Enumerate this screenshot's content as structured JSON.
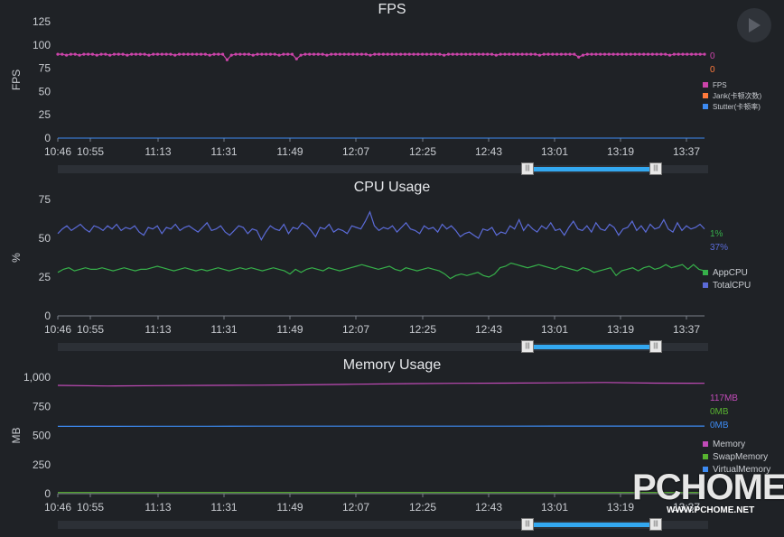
{
  "play_icon": "play-icon",
  "watermark": {
    "brand": "PCHOME",
    "url": "WWW.PCHOME.NET"
  },
  "x_ticks": [
    "10:46",
    "10:55",
    "11:13",
    "11:31",
    "11:49",
    "12:07",
    "12:25",
    "12:43",
    "13:01",
    "13:19",
    "13:37"
  ],
  "chart_data": [
    {
      "type": "line",
      "title": "FPS",
      "ylabel": "FPS",
      "ylim": [
        0,
        125
      ],
      "yticks": [
        0,
        25,
        50,
        75,
        100,
        125
      ],
      "grid": false,
      "legend_position": "right",
      "current_values": [
        "0",
        "0"
      ],
      "series": [
        {
          "name": "FPS",
          "color": "#cc44aa",
          "values": [
            90,
            90,
            89,
            90,
            90,
            89,
            90,
            90,
            90,
            89,
            90,
            90,
            89,
            90,
            90,
            90,
            89,
            90,
            90,
            90,
            90,
            89,
            90,
            90,
            90,
            90,
            90,
            89,
            90,
            90,
            90,
            90,
            90,
            90,
            90,
            89,
            90,
            90,
            90,
            84,
            89,
            90,
            90,
            90,
            90,
            89,
            90,
            90,
            90,
            90,
            90,
            89,
            90,
            90,
            90,
            85,
            89,
            90,
            90,
            90,
            90,
            90,
            89,
            90,
            90,
            90,
            90,
            90,
            90,
            90,
            90,
            90,
            89,
            90,
            90,
            90,
            90,
            90,
            90,
            90,
            90,
            90,
            90,
            90,
            90,
            90,
            90,
            90,
            90,
            89,
            90,
            90,
            90,
            90,
            90,
            90,
            90,
            90,
            90,
            90,
            90,
            89,
            90,
            90,
            90,
            90,
            90,
            90,
            90,
            90,
            90,
            89,
            90,
            90,
            90,
            90,
            90,
            90,
            90,
            90,
            87,
            89,
            90,
            90,
            90,
            90,
            90,
            90,
            90,
            90,
            90,
            90,
            90,
            90,
            90,
            90,
            90,
            90,
            90,
            90,
            90,
            89,
            90,
            90,
            90,
            90,
            90,
            90,
            90,
            90
          ]
        },
        {
          "name": "Jank(卡顿次数)",
          "color": "#ff7a3c",
          "values": [
            0
          ]
        },
        {
          "name": "Stutter(卡顿率)",
          "color": "#3d8bf2",
          "values": [
            0
          ]
        }
      ]
    },
    {
      "type": "line",
      "title": "CPU Usage",
      "ylabel": "%",
      "ylim": [
        0,
        75
      ],
      "yticks": [
        0,
        25,
        50,
        75
      ],
      "grid": false,
      "legend_position": "right",
      "current_values": [
        "1%",
        "37%"
      ],
      "series": [
        {
          "name": "AppCPU",
          "color": "#36b04a",
          "values": [
            28,
            30,
            31,
            29,
            30,
            31,
            30,
            30,
            31,
            30,
            29,
            30,
            31,
            30,
            29,
            30,
            30,
            31,
            32,
            31,
            30,
            29,
            30,
            31,
            30,
            29,
            30,
            29,
            30,
            31,
            30,
            29,
            30,
            31,
            30,
            31,
            30,
            29,
            30,
            31,
            30,
            29,
            27,
            30,
            28,
            30,
            31,
            30,
            29,
            31,
            30,
            29,
            30,
            31,
            32,
            33,
            32,
            31,
            30,
            31,
            32,
            30,
            29,
            31,
            30,
            29,
            30,
            31,
            30,
            29,
            27,
            24,
            26,
            27,
            26,
            27,
            28,
            26,
            25,
            27,
            31,
            32,
            34,
            33,
            32,
            31,
            32,
            33,
            32,
            31,
            30,
            32,
            31,
            30,
            29,
            31,
            30,
            28,
            29,
            30,
            31,
            26,
            29,
            30,
            31,
            29,
            31,
            32,
            30,
            31,
            33,
            31,
            32,
            33,
            30,
            33,
            30,
            29
          ]
        },
        {
          "name": "TotalCPU",
          "color": "#5b6bd8",
          "values": [
            53,
            56,
            58,
            55,
            57,
            59,
            56,
            54,
            58,
            57,
            55,
            58,
            56,
            59,
            55,
            57,
            56,
            58,
            54,
            52,
            57,
            56,
            58,
            53,
            57,
            56,
            59,
            55,
            57,
            58,
            56,
            54,
            57,
            60,
            55,
            56,
            58,
            54,
            52,
            55,
            58,
            57,
            53,
            56,
            55,
            49,
            54,
            58,
            56,
            55,
            59,
            53,
            57,
            56,
            60,
            58,
            55,
            51,
            57,
            56,
            59,
            54,
            56,
            55,
            53,
            58,
            57,
            56,
            61,
            67,
            58,
            55,
            57,
            56,
            58,
            54,
            57,
            60,
            56,
            55,
            53,
            58,
            56,
            57,
            54,
            59,
            56,
            58,
            55,
            51,
            53,
            54,
            52,
            50,
            56,
            55,
            57,
            52,
            54,
            53,
            58,
            56,
            62,
            55,
            59,
            56,
            54,
            58,
            56,
            60,
            55,
            56,
            52,
            57,
            61,
            56,
            55,
            58,
            54,
            60,
            56,
            55,
            59,
            57,
            52,
            56,
            57,
            61,
            55,
            58,
            54,
            59,
            56,
            57,
            62,
            56,
            54,
            60,
            55,
            58,
            56,
            57,
            59,
            56
          ]
        }
      ]
    },
    {
      "type": "line",
      "title": "Memory Usage",
      "ylabel": "MB",
      "ylim": [
        0,
        1000
      ],
      "yticks": [
        "0",
        "250",
        "500",
        "750",
        "1,000"
      ],
      "grid": false,
      "legend_position": "right",
      "current_values": [
        "117MB",
        "0MB",
        "0MB"
      ],
      "series": [
        {
          "name": "Memory",
          "color": "#c14bb8",
          "values": [
            930,
            925,
            928,
            930,
            932,
            935,
            940,
            945,
            948,
            950,
            952,
            955,
            950,
            948
          ]
        },
        {
          "name": "SwapMemory",
          "color": "#58b330",
          "values": [
            10,
            10,
            10,
            10,
            10,
            10,
            10,
            10,
            10,
            10,
            10,
            10,
            10,
            10
          ]
        },
        {
          "name": "VirtualMemory",
          "color": "#3d8bf2",
          "values": [
            578,
            578,
            579,
            579,
            580,
            580,
            580,
            580,
            580,
            580,
            581,
            581,
            581,
            581
          ]
        }
      ]
    }
  ]
}
